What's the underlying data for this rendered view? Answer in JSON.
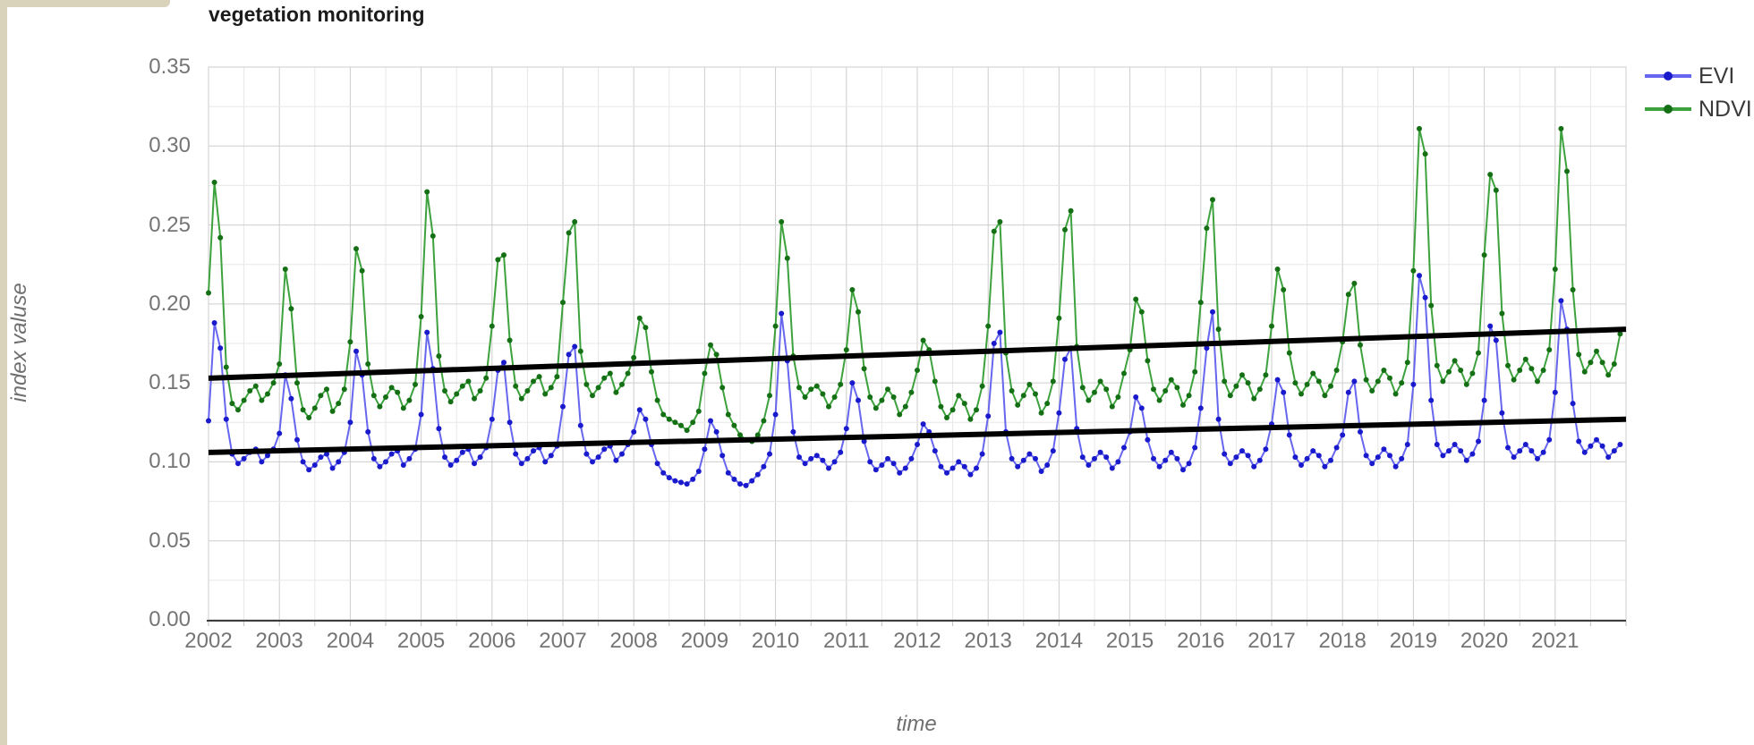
{
  "page": {
    "title": "vegetation monitoring"
  },
  "axes": {
    "y_title": "index valuse",
    "x_title": "time"
  },
  "legend": [
    {
      "label": "EVI",
      "line_color": "#6666ee",
      "dot_color": "#1a1acd"
    },
    {
      "label": "NDVI",
      "line_color": "#3da23d",
      "dot_color": "#157015"
    }
  ],
  "chart_data": {
    "type": "line",
    "title": "vegetation monitoring",
    "xlabel": "time",
    "ylabel": "index valuse",
    "xlim": [
      2002,
      2022
    ],
    "ylim": [
      0.0,
      0.35
    ],
    "grid": {
      "x_minor_step_years": 0.5,
      "y_minor_step": 0.025,
      "y_major_step": 0.05
    },
    "legend_position": "top-right-outside",
    "x_ticks": [
      2002,
      2003,
      2004,
      2005,
      2006,
      2007,
      2008,
      2009,
      2010,
      2011,
      2012,
      2013,
      2014,
      2015,
      2016,
      2017,
      2018,
      2019,
      2020,
      2021
    ],
    "y_ticks": [
      {
        "value": 0.0,
        "label": "0.00"
      },
      {
        "value": 0.05,
        "label": "0.05"
      },
      {
        "value": 0.1,
        "label": "0.10"
      },
      {
        "value": 0.15,
        "label": "0.15"
      },
      {
        "value": 0.2,
        "label": "0.20"
      },
      {
        "value": 0.25,
        "label": "0.25"
      },
      {
        "value": 0.3,
        "label": "0.30"
      },
      {
        "value": 0.35,
        "label": "0.35"
      },
      {
        "value": 0.025,
        "label": ""
      }
    ],
    "x_start_year": 2002,
    "points_per_year": 12,
    "series": [
      {
        "name": "EVI",
        "line_color": "#6666ee",
        "dot_color": "#1a1acd",
        "values": [
          0.126,
          0.188,
          0.172,
          0.127,
          0.105,
          0.099,
          0.102,
          0.106,
          0.108,
          0.1,
          0.104,
          0.108,
          0.118,
          0.155,
          0.14,
          0.114,
          0.1,
          0.095,
          0.098,
          0.103,
          0.105,
          0.096,
          0.1,
          0.106,
          0.125,
          0.17,
          0.155,
          0.119,
          0.102,
          0.097,
          0.1,
          0.105,
          0.107,
          0.098,
          0.102,
          0.108,
          0.13,
          0.182,
          0.159,
          0.121,
          0.103,
          0.098,
          0.101,
          0.106,
          0.108,
          0.099,
          0.103,
          0.109,
          0.127,
          0.158,
          0.163,
          0.125,
          0.105,
          0.099,
          0.102,
          0.107,
          0.109,
          0.1,
          0.104,
          0.11,
          0.135,
          0.168,
          0.173,
          0.123,
          0.105,
          0.1,
          0.103,
          0.108,
          0.11,
          0.101,
          0.105,
          0.111,
          0.119,
          0.133,
          0.127,
          0.111,
          0.099,
          0.093,
          0.09,
          0.088,
          0.087,
          0.086,
          0.089,
          0.094,
          0.108,
          0.126,
          0.119,
          0.104,
          0.093,
          0.089,
          0.086,
          0.085,
          0.088,
          0.092,
          0.097,
          0.105,
          0.13,
          0.194,
          0.164,
          0.119,
          0.103,
          0.099,
          0.102,
          0.104,
          0.101,
          0.096,
          0.1,
          0.106,
          0.121,
          0.15,
          0.139,
          0.113,
          0.1,
          0.095,
          0.098,
          0.102,
          0.099,
          0.093,
          0.096,
          0.102,
          0.111,
          0.124,
          0.119,
          0.107,
          0.097,
          0.093,
          0.096,
          0.1,
          0.097,
          0.092,
          0.096,
          0.105,
          0.129,
          0.175,
          0.182,
          0.119,
          0.102,
          0.097,
          0.101,
          0.105,
          0.102,
          0.094,
          0.098,
          0.107,
          0.131,
          0.165,
          0.172,
          0.121,
          0.103,
          0.098,
          0.102,
          0.106,
          0.103,
          0.096,
          0.1,
          0.109,
          0.119,
          0.141,
          0.134,
          0.114,
          0.102,
          0.097,
          0.101,
          0.106,
          0.102,
          0.095,
          0.099,
          0.109,
          0.134,
          0.172,
          0.195,
          0.127,
          0.105,
          0.099,
          0.103,
          0.107,
          0.104,
          0.097,
          0.101,
          0.108,
          0.124,
          0.152,
          0.144,
          0.117,
          0.103,
          0.098,
          0.102,
          0.107,
          0.104,
          0.097,
          0.101,
          0.109,
          0.117,
          0.144,
          0.151,
          0.119,
          0.104,
          0.099,
          0.103,
          0.108,
          0.104,
          0.097,
          0.102,
          0.111,
          0.149,
          0.218,
          0.204,
          0.139,
          0.111,
          0.104,
          0.107,
          0.111,
          0.107,
          0.101,
          0.105,
          0.113,
          0.139,
          0.186,
          0.177,
          0.131,
          0.109,
          0.103,
          0.107,
          0.111,
          0.107,
          0.102,
          0.106,
          0.114,
          0.144,
          0.202,
          0.184,
          0.137,
          0.113,
          0.106,
          0.11,
          0.114,
          0.11,
          0.103,
          0.107,
          0.111
        ]
      },
      {
        "name": "NDVI",
        "line_color": "#3da23d",
        "dot_color": "#157015",
        "values": [
          0.207,
          0.277,
          0.242,
          0.16,
          0.137,
          0.133,
          0.139,
          0.145,
          0.148,
          0.139,
          0.143,
          0.15,
          0.162,
          0.222,
          0.197,
          0.15,
          0.133,
          0.128,
          0.134,
          0.142,
          0.146,
          0.132,
          0.137,
          0.146,
          0.176,
          0.235,
          0.221,
          0.162,
          0.142,
          0.135,
          0.141,
          0.147,
          0.144,
          0.134,
          0.139,
          0.149,
          0.192,
          0.271,
          0.243,
          0.167,
          0.145,
          0.138,
          0.143,
          0.148,
          0.151,
          0.14,
          0.145,
          0.153,
          0.186,
          0.228,
          0.231,
          0.177,
          0.148,
          0.14,
          0.145,
          0.151,
          0.154,
          0.143,
          0.147,
          0.154,
          0.201,
          0.245,
          0.252,
          0.17,
          0.149,
          0.142,
          0.147,
          0.153,
          0.156,
          0.144,
          0.149,
          0.156,
          0.166,
          0.191,
          0.185,
          0.157,
          0.139,
          0.13,
          0.127,
          0.125,
          0.123,
          0.12,
          0.125,
          0.132,
          0.156,
          0.174,
          0.168,
          0.147,
          0.13,
          0.123,
          0.117,
          0.114,
          0.113,
          0.117,
          0.126,
          0.142,
          0.186,
          0.252,
          0.229,
          0.167,
          0.147,
          0.141,
          0.146,
          0.148,
          0.143,
          0.135,
          0.141,
          0.149,
          0.171,
          0.209,
          0.195,
          0.159,
          0.141,
          0.134,
          0.139,
          0.146,
          0.141,
          0.13,
          0.135,
          0.144,
          0.158,
          0.177,
          0.171,
          0.151,
          0.135,
          0.128,
          0.133,
          0.142,
          0.137,
          0.127,
          0.133,
          0.148,
          0.186,
          0.246,
          0.252,
          0.169,
          0.145,
          0.136,
          0.142,
          0.149,
          0.143,
          0.131,
          0.137,
          0.151,
          0.191,
          0.247,
          0.259,
          0.173,
          0.147,
          0.139,
          0.144,
          0.151,
          0.146,
          0.135,
          0.141,
          0.156,
          0.171,
          0.203,
          0.195,
          0.164,
          0.146,
          0.139,
          0.145,
          0.152,
          0.147,
          0.136,
          0.142,
          0.157,
          0.201,
          0.248,
          0.266,
          0.184,
          0.151,
          0.142,
          0.148,
          0.155,
          0.15,
          0.14,
          0.146,
          0.155,
          0.186,
          0.222,
          0.209,
          0.169,
          0.15,
          0.143,
          0.149,
          0.156,
          0.151,
          0.142,
          0.148,
          0.158,
          0.176,
          0.206,
          0.213,
          0.174,
          0.152,
          0.145,
          0.151,
          0.158,
          0.153,
          0.143,
          0.15,
          0.163,
          0.221,
          0.311,
          0.295,
          0.199,
          0.161,
          0.151,
          0.157,
          0.164,
          0.158,
          0.149,
          0.156,
          0.169,
          0.231,
          0.282,
          0.272,
          0.194,
          0.161,
          0.152,
          0.158,
          0.165,
          0.159,
          0.151,
          0.158,
          0.171,
          0.222,
          0.311,
          0.284,
          0.209,
          0.168,
          0.157,
          0.163,
          0.17,
          0.163,
          0.155,
          0.162,
          0.181
        ]
      }
    ],
    "trend_lines": [
      {
        "name": "EVI-trend",
        "color": "#000000",
        "start": [
          2002,
          0.106
        ],
        "end": [
          2022,
          0.127
        ]
      },
      {
        "name": "NDVI-trend",
        "color": "#000000",
        "start": [
          2002,
          0.153
        ],
        "end": [
          2022,
          0.184
        ]
      }
    ]
  }
}
